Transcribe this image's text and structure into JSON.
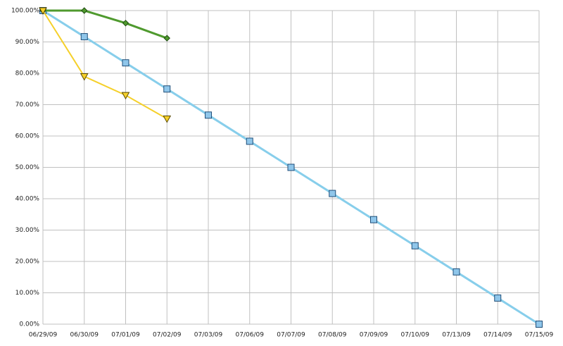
{
  "chart_data": {
    "type": "line",
    "categories": [
      "06/29/09",
      "06/30/09",
      "07/01/09",
      "07/02/09",
      "07/03/09",
      "07/06/09",
      "07/07/09",
      "07/08/09",
      "07/09/09",
      "07/10/09",
      "07/13/09",
      "07/14/09",
      "07/15/09"
    ],
    "series": [
      {
        "color": "#87ceeb",
        "marker": "square",
        "values": [
          100,
          91.67,
          83.33,
          75,
          66.67,
          58.33,
          50,
          41.67,
          33.33,
          25,
          16.67,
          8.33,
          0
        ]
      },
      {
        "color": "#4f9a2e",
        "marker": "diamond",
        "values": [
          100,
          100,
          96,
          91.2,
          null,
          null,
          null,
          null,
          null,
          null,
          null,
          null,
          null
        ]
      },
      {
        "color": "#f5d02a",
        "marker": "triangle",
        "values": [
          100,
          79,
          73,
          65.5,
          null,
          null,
          null,
          null,
          null,
          null,
          null,
          null,
          null
        ]
      }
    ],
    "ylim": [
      0,
      100
    ],
    "yticks": [
      {
        "value": 0,
        "label": "0.00%"
      },
      {
        "value": 10,
        "label": "10.00%"
      },
      {
        "value": 20,
        "label": "20.00%"
      },
      {
        "value": 30,
        "label": "30.00%"
      },
      {
        "value": 40,
        "label": "40.00%"
      },
      {
        "value": 50,
        "label": "50.00%"
      },
      {
        "value": 60,
        "label": "60.00%"
      },
      {
        "value": 70,
        "label": "70.00%"
      },
      {
        "value": 80,
        "label": "80.00%"
      },
      {
        "value": 90,
        "label": "90.00%"
      },
      {
        "value": 100,
        "label": "100.00%"
      }
    ],
    "grid": true
  }
}
